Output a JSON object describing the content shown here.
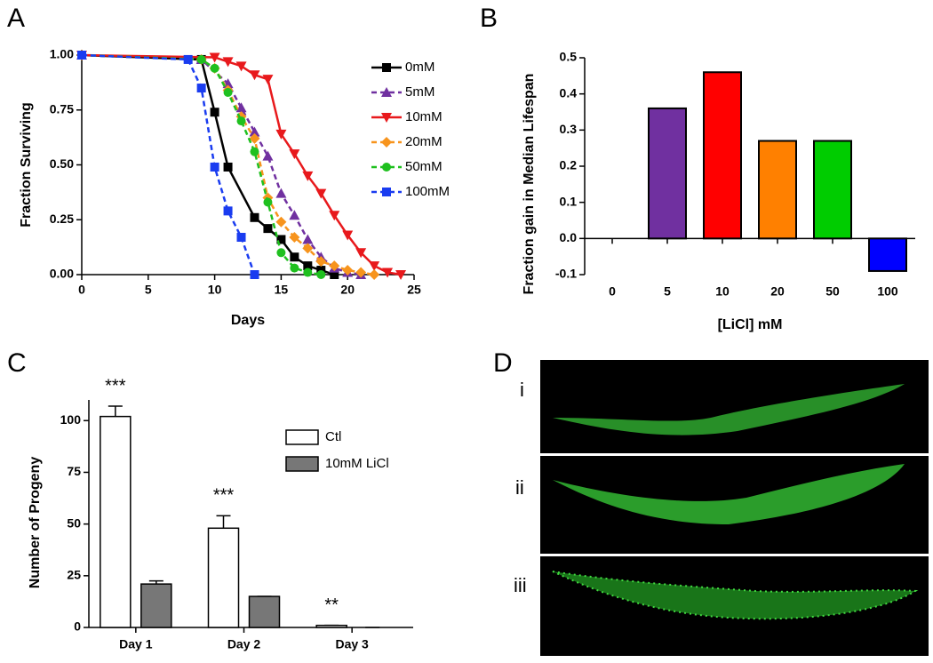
{
  "chart_data": [
    {
      "type": "line",
      "panel": "A",
      "xlabel": "Days",
      "ylabel": "Fraction Surviving",
      "xlim": [
        0,
        25
      ],
      "xticks": [
        0,
        5,
        10,
        15,
        20,
        25
      ],
      "ylim": [
        0,
        1
      ],
      "yticks": [
        {
          "value": 0,
          "label": "0.00"
        },
        0.25,
        {
          "value": 0.5,
          "label": "0.50"
        },
        0.75,
        {
          "value": 1,
          "label": "1.00"
        }
      ],
      "legend": "upper right",
      "series": [
        {
          "name": "0mM",
          "color": "#000000",
          "marker": "square",
          "dashed": false,
          "x": [
            0,
            9,
            10,
            11,
            13,
            14,
            15,
            16,
            17,
            18,
            19
          ],
          "values": [
            1,
            0.98,
            0.74,
            0.49,
            0.26,
            0.21,
            0.16,
            0.08,
            0.04,
            0.02,
            0
          ]
        },
        {
          "name": "5mM",
          "color": "#7030a0",
          "marker": "triangle",
          "dashed": true,
          "x": [
            0,
            9,
            11,
            12,
            13,
            14,
            15,
            16,
            17,
            18,
            19,
            20,
            21
          ],
          "values": [
            1,
            0.98,
            0.87,
            0.76,
            0.65,
            0.54,
            0.37,
            0.27,
            0.16,
            0.08,
            0.03,
            0.01,
            0
          ]
        },
        {
          "name": "10mM",
          "color": "#e8191c",
          "marker": "triangle-down",
          "dashed": false,
          "x": [
            0,
            10,
            11,
            12,
            13,
            14,
            15,
            16,
            17,
            18,
            19,
            20,
            21,
            22,
            23,
            24
          ],
          "values": [
            1,
            0.99,
            0.97,
            0.95,
            0.91,
            0.89,
            0.64,
            0.55,
            0.45,
            0.37,
            0.27,
            0.18,
            0.1,
            0.04,
            0.01,
            0
          ]
        },
        {
          "name": "20mM",
          "color": "#f7941d",
          "marker": "diamond",
          "dashed": true,
          "x": [
            0,
            9,
            10,
            11,
            12,
            13,
            14,
            15,
            16,
            17,
            18,
            19,
            20,
            21,
            22
          ],
          "values": [
            1,
            0.98,
            0.94,
            0.84,
            0.72,
            0.62,
            0.35,
            0.24,
            0.17,
            0.12,
            0.06,
            0.04,
            0.02,
            0.01,
            0
          ]
        },
        {
          "name": "50mM",
          "color": "#1fc01f",
          "marker": "circle",
          "dashed": true,
          "x": [
            0,
            9,
            10,
            11,
            12,
            13,
            14,
            15,
            16,
            17,
            18
          ],
          "values": [
            1,
            0.98,
            0.94,
            0.83,
            0.7,
            0.56,
            0.33,
            0.1,
            0.03,
            0.01,
            0
          ]
        },
        {
          "name": "100mM",
          "color": "#1a3cf0",
          "marker": "square",
          "dashed": true,
          "x": [
            0,
            8,
            9,
            10,
            11,
            12,
            13
          ],
          "values": [
            1,
            0.98,
            0.85,
            0.49,
            0.29,
            0.17,
            0
          ]
        }
      ]
    },
    {
      "type": "bar",
      "panel": "B",
      "xlabel": "[LiCl] mM",
      "ylabel": "Fraction gain in Median Lifespan",
      "categories": [
        "0",
        "5",
        "10",
        "20",
        "50",
        "100"
      ],
      "values": [
        0,
        0.36,
        0.46,
        0.27,
        0.27,
        -0.09
      ],
      "colors": [
        "#000000",
        "#7030a0",
        "#ff0000",
        "#ff8000",
        "#00cc00",
        "#0000ff"
      ],
      "ylim": [
        -0.1,
        0.5
      ],
      "yticks": [
        -0.1,
        {
          "value": 0,
          "label": "0.0"
        },
        0.1,
        0.2,
        0.3,
        0.4,
        0.5
      ]
    },
    {
      "type": "grouped_bar",
      "panel": "C",
      "ylabel": "Number of Progeny",
      "categories": [
        "Day 1",
        "Day 2",
        "Day 3"
      ],
      "series": [
        {
          "name": "Ctl",
          "color": "#ffffff",
          "values": [
            102,
            48,
            1
          ],
          "errors": [
            5,
            6,
            0
          ]
        },
        {
          "name": "10mM LiCl",
          "color": "#777777",
          "values": [
            21,
            15,
            0
          ],
          "errors": [
            1.5,
            0,
            0
          ]
        }
      ],
      "annotations": [
        "***",
        "***",
        "**"
      ],
      "ylim": [
        0,
        110
      ],
      "yticks": [
        0,
        25,
        50,
        75,
        100
      ]
    }
  ],
  "panel_d": {
    "label": "D",
    "rows": [
      "i",
      "ii",
      "iii"
    ]
  }
}
